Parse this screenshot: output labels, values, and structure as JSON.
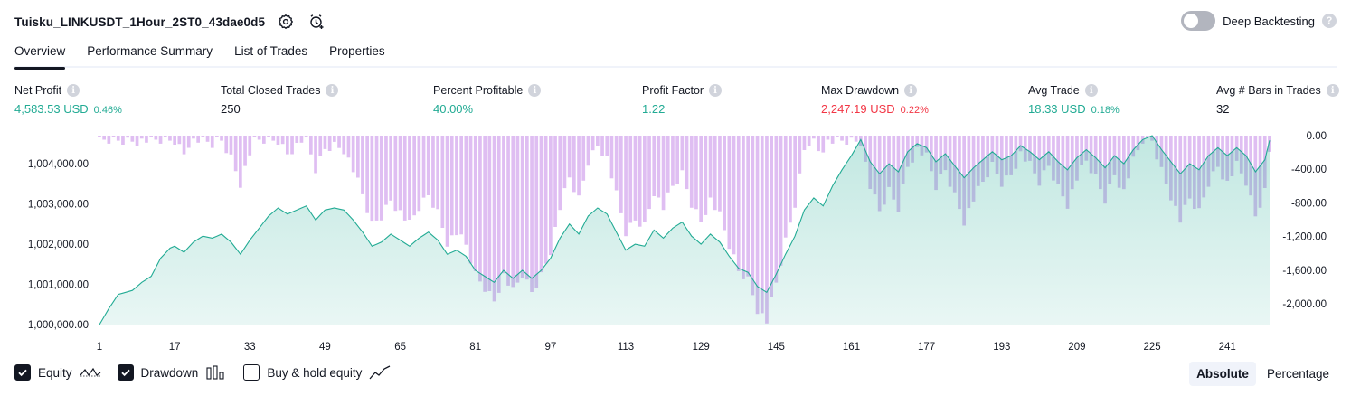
{
  "header": {
    "title": "Tuisku_LINKUSDT_1Hour_2ST0_43dae0d5",
    "deep_backtesting_label": "Deep Backtesting",
    "deep_backtesting_enabled": false
  },
  "tabs": [
    {
      "label": "Overview",
      "active": true
    },
    {
      "label": "Performance Summary",
      "active": false
    },
    {
      "label": "List of Trades",
      "active": false
    },
    {
      "label": "Properties",
      "active": false
    }
  ],
  "stats": [
    {
      "label": "Net Profit",
      "value": "4,583.53 USD",
      "pct": "0.46%",
      "tone": "green"
    },
    {
      "label": "Total Closed Trades",
      "value": "250",
      "pct": "",
      "tone": "dark"
    },
    {
      "label": "Percent Profitable",
      "value": "40.00%",
      "pct": "",
      "tone": "green"
    },
    {
      "label": "Profit Factor",
      "value": "1.22",
      "pct": "",
      "tone": "green"
    },
    {
      "label": "Max Drawdown",
      "value": "2,247.19 USD",
      "pct": "0.22%",
      "tone": "red"
    },
    {
      "label": "Avg Trade",
      "value": "18.33 USD",
      "pct": "0.18%",
      "tone": "green"
    },
    {
      "label": "Avg # Bars in Trades",
      "value": "32",
      "pct": "",
      "tone": "dark"
    }
  ],
  "chart_data": {
    "type": "area",
    "series": [
      {
        "name": "Equity",
        "axis": "left",
        "color": "#22ab94"
      },
      {
        "name": "Drawdown",
        "axis": "right",
        "color": "#ce93d8"
      }
    ],
    "x_ticks": [
      "1",
      "17",
      "33",
      "49",
      "65",
      "81",
      "97",
      "113",
      "129",
      "145",
      "161",
      "177",
      "193",
      "209",
      "225",
      "241"
    ],
    "x_range": [
      1,
      250
    ],
    "left_axis": {
      "ticks": [
        "1,004,000.00",
        "1,003,000.00",
        "1,002,000.00",
        "1,001,000.00",
        "1,000,000.00"
      ],
      "range": [
        1000000,
        1004700
      ]
    },
    "right_axis": {
      "ticks": [
        "0.00",
        "-400.00",
        "-800.00",
        "-1,200.00",
        "-1,600.00",
        "-2,000.00"
      ],
      "range": [
        -2247,
        0
      ]
    },
    "equity_knots": [
      [
        1,
        1000000
      ],
      [
        3,
        1000400
      ],
      [
        5,
        1000750
      ],
      [
        8,
        1000850
      ],
      [
        10,
        1001050
      ],
      [
        12,
        1001200
      ],
      [
        14,
        1001650
      ],
      [
        16,
        1001900
      ],
      [
        17,
        1001950
      ],
      [
        19,
        1001800
      ],
      [
        21,
        1002050
      ],
      [
        23,
        1002200
      ],
      [
        25,
        1002150
      ],
      [
        27,
        1002250
      ],
      [
        29,
        1002050
      ],
      [
        31,
        1001750
      ],
      [
        33,
        1002100
      ],
      [
        35,
        1002400
      ],
      [
        37,
        1002700
      ],
      [
        39,
        1002900
      ],
      [
        41,
        1002750
      ],
      [
        43,
        1002850
      ],
      [
        45,
        1002950
      ],
      [
        47,
        1002600
      ],
      [
        49,
        1002850
      ],
      [
        51,
        1002900
      ],
      [
        53,
        1002850
      ],
      [
        55,
        1002600
      ],
      [
        57,
        1002300
      ],
      [
        59,
        1001950
      ],
      [
        61,
        1002050
      ],
      [
        63,
        1002250
      ],
      [
        65,
        1002100
      ],
      [
        67,
        1001950
      ],
      [
        69,
        1002150
      ],
      [
        71,
        1002300
      ],
      [
        73,
        1002100
      ],
      [
        75,
        1001750
      ],
      [
        77,
        1001850
      ],
      [
        79,
        1001700
      ],
      [
        81,
        1001350
      ],
      [
        83,
        1001200
      ],
      [
        85,
        1001050
      ],
      [
        87,
        1001350
      ],
      [
        89,
        1001150
      ],
      [
        91,
        1001350
      ],
      [
        93,
        1001150
      ],
      [
        95,
        1001350
      ],
      [
        97,
        1001650
      ],
      [
        99,
        1002150
      ],
      [
        101,
        1002500
      ],
      [
        103,
        1002250
      ],
      [
        105,
        1002700
      ],
      [
        107,
        1002900
      ],
      [
        109,
        1002750
      ],
      [
        111,
        1002300
      ],
      [
        113,
        1001850
      ],
      [
        115,
        1002000
      ],
      [
        117,
        1001950
      ],
      [
        119,
        1002350
      ],
      [
        121,
        1002150
      ],
      [
        123,
        1002400
      ],
      [
        125,
        1002550
      ],
      [
        127,
        1002200
      ],
      [
        129,
        1002000
      ],
      [
        131,
        1002250
      ],
      [
        133,
        1002050
      ],
      [
        135,
        1001700
      ],
      [
        137,
        1001400
      ],
      [
        139,
        1001300
      ],
      [
        141,
        1000950
      ],
      [
        143,
        1000800
      ],
      [
        145,
        1001250
      ],
      [
        147,
        1001750
      ],
      [
        149,
        1002200
      ],
      [
        151,
        1002850
      ],
      [
        153,
        1003150
      ],
      [
        155,
        1002950
      ],
      [
        157,
        1003450
      ],
      [
        159,
        1003850
      ],
      [
        161,
        1004200
      ],
      [
        163,
        1004600
      ],
      [
        165,
        1004050
      ],
      [
        167,
        1003750
      ],
      [
        169,
        1004000
      ],
      [
        171,
        1003800
      ],
      [
        173,
        1004300
      ],
      [
        175,
        1004500
      ],
      [
        177,
        1004400
      ],
      [
        179,
        1004050
      ],
      [
        181,
        1004250
      ],
      [
        183,
        1003950
      ],
      [
        185,
        1003650
      ],
      [
        187,
        1003900
      ],
      [
        189,
        1004100
      ],
      [
        191,
        1004300
      ],
      [
        193,
        1004100
      ],
      [
        195,
        1004200
      ],
      [
        197,
        1004450
      ],
      [
        199,
        1004300
      ],
      [
        201,
        1004100
      ],
      [
        203,
        1004300
      ],
      [
        205,
        1004050
      ],
      [
        207,
        1003850
      ],
      [
        209,
        1004150
      ],
      [
        211,
        1004350
      ],
      [
        213,
        1004150
      ],
      [
        215,
        1003900
      ],
      [
        217,
        1004200
      ],
      [
        219,
        1004000
      ],
      [
        221,
        1004350
      ],
      [
        223,
        1004600
      ],
      [
        225,
        1004700
      ],
      [
        227,
        1004350
      ],
      [
        229,
        1004050
      ],
      [
        231,
        1003750
      ],
      [
        233,
        1004000
      ],
      [
        235,
        1003850
      ],
      [
        237,
        1004200
      ],
      [
        239,
        1004400
      ],
      [
        241,
        1004200
      ],
      [
        243,
        1004400
      ],
      [
        245,
        1004200
      ],
      [
        247,
        1003800
      ],
      [
        249,
        1004100
      ],
      [
        250,
        1004580
      ]
    ]
  },
  "legend": [
    {
      "label": "Equity",
      "checked": true,
      "icon": "equity-line-icon"
    },
    {
      "label": "Drawdown",
      "checked": true,
      "icon": "drawdown-bars-icon"
    },
    {
      "label": "Buy & hold equity",
      "checked": false,
      "icon": "buy-hold-line-icon"
    }
  ],
  "view_mode": {
    "options": [
      "Absolute",
      "Percentage"
    ],
    "selected": "Absolute"
  }
}
